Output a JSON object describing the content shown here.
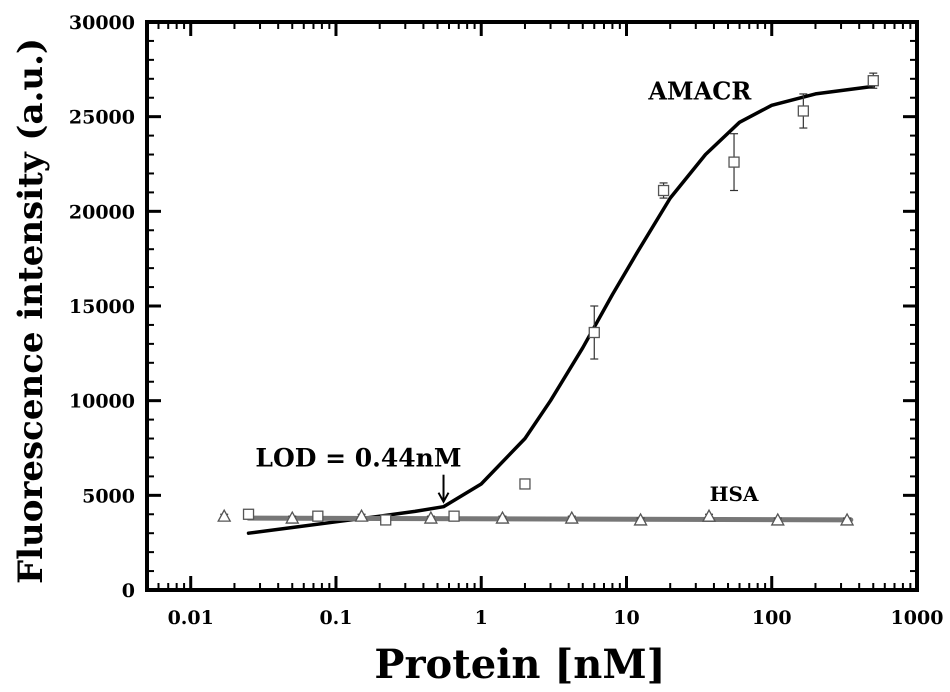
{
  "chart_data": {
    "type": "scatter",
    "xlabel": "Protein [nM]",
    "ylabel": "Fluorescence intensity (a.u.)",
    "xscale": "log",
    "xlim": [
      0.005,
      1000
    ],
    "ylim": [
      0,
      30000
    ],
    "xticks": [
      0.01,
      0.1,
      1,
      10,
      100,
      1000
    ],
    "xtick_labels": [
      "0.01",
      "0.1",
      "1",
      "10",
      "100",
      "1000"
    ],
    "yticks": [
      0,
      5000,
      10000,
      15000,
      20000,
      25000,
      30000
    ],
    "ytick_labels": [
      "0",
      "5000",
      "10000",
      "15000",
      "20000",
      "25000",
      "30000"
    ],
    "grid": false,
    "series": [
      {
        "name": "AMACR",
        "marker": "square",
        "x": [
          0.025,
          0.075,
          0.22,
          0.65,
          2.0,
          6.0,
          18,
          55,
          165,
          500
        ],
        "y": [
          4000,
          3900,
          3700,
          3900,
          5600,
          13600,
          21100,
          22600,
          25300,
          26900
        ],
        "error": [
          100,
          100,
          100,
          100,
          150,
          1400,
          400,
          1500,
          900,
          400
        ],
        "fit": {
          "x": [
            0.025,
            0.05,
            0.1,
            0.2,
            0.35,
            0.55,
            1,
            2,
            3,
            5,
            8,
            12,
            20,
            35,
            60,
            100,
            200,
            500
          ],
          "y": [
            3000,
            3300,
            3600,
            3900,
            4150,
            4400,
            5600,
            8000,
            10000,
            12800,
            15600,
            17900,
            20700,
            23000,
            24700,
            25600,
            26200,
            26600
          ]
        }
      },
      {
        "name": "HSA",
        "marker": "triangle",
        "x": [
          0.017,
          0.05,
          0.15,
          0.45,
          1.4,
          4.2,
          12.5,
          37,
          110,
          330
        ],
        "y": [
          3900,
          3800,
          3900,
          3800,
          3800,
          3800,
          3700,
          3900,
          3700,
          3700
        ],
        "error": [
          100,
          100,
          100,
          100,
          100,
          100,
          100,
          100,
          100,
          100
        ],
        "fit": {
          "x": [
            0.025,
            350
          ],
          "y": [
            3800,
            3700
          ]
        }
      }
    ],
    "annotations": [
      {
        "text": "LOD = 0.44nM",
        "x": 0.55,
        "y": 4400,
        "arrow": true
      },
      {
        "text": "AMACR",
        "x": 32,
        "y": 25900
      },
      {
        "text": "HSA",
        "x": 55,
        "y": 4700
      }
    ]
  }
}
